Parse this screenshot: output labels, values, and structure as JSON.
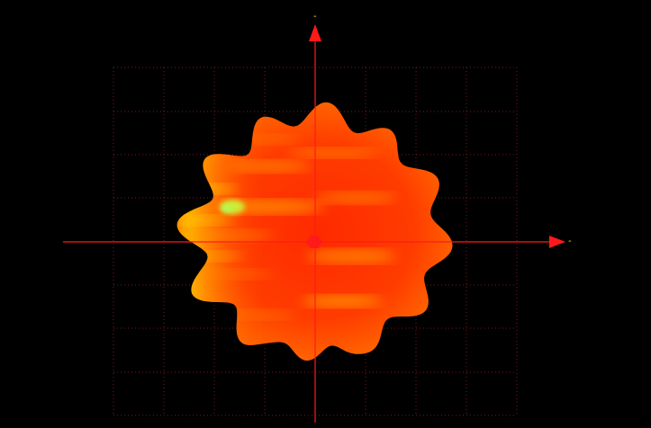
{
  "view": {
    "background": "#000000",
    "grid_color": "#7a1a1a",
    "axis_color": "#ff1a1a",
    "axis_end_label_color": "#ffe600"
  },
  "axes": {
    "x_end_label": "-",
    "y_end_label": "-"
  },
  "surface": {
    "colormap": [
      "#ff1400",
      "#ff4a00",
      "#ff8a00",
      "#ffd000",
      "#c8ff40"
    ],
    "lobe_count": 12
  }
}
